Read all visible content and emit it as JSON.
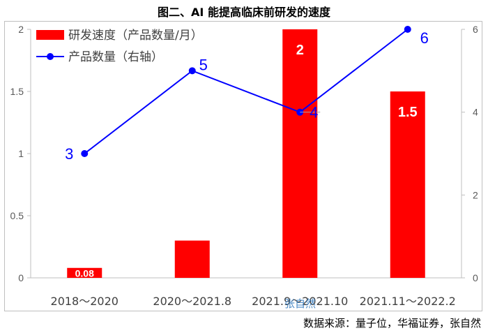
{
  "chart_data": {
    "type": "bar",
    "title": "图二、AI 能提高临床前研发的速度",
    "categories": [
      "2018～2020",
      "2020～2021.8",
      "2021.9～2021.10",
      "2021.11～2022.2"
    ],
    "series": [
      {
        "name": "研发速度（产品数量/月）",
        "type": "bar",
        "axis": "left",
        "values": [
          0.08,
          0.3,
          2,
          1.5
        ],
        "labels": [
          "0.08",
          "",
          "2",
          "1.5"
        ],
        "color": "#ff0000"
      },
      {
        "name": "产品数量（右轴）",
        "type": "line",
        "axis": "right",
        "values": [
          3,
          5,
          4,
          6
        ],
        "labels": [
          "3",
          "5",
          "4",
          "6"
        ],
        "color": "#0000ff"
      }
    ],
    "left_axis": {
      "ylim": [
        0,
        2
      ],
      "ticks": [
        "0",
        "0.5",
        "1",
        "1.5",
        "2"
      ]
    },
    "right_axis": {
      "ylim": [
        0,
        6
      ],
      "ticks": [
        "0",
        "2",
        "4",
        "6"
      ]
    },
    "legend": "top-left",
    "grid": false
  },
  "source_text": "数据来源：量子位，华福证券，张自然",
  "watermark": "张自然"
}
